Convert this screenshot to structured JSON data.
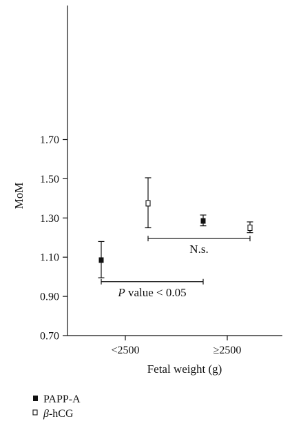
{
  "chart_data": {
    "type": "errorbar",
    "title": "",
    "xlabel": "Fetal weight (g)",
    "ylabel": "MoM",
    "categories": [
      "<2500",
      "≥2500"
    ],
    "ylim": [
      0.7,
      1.8
    ],
    "yticks": [
      "0.70",
      "0.90",
      "1.10",
      "1.30",
      "1.50",
      "1.70"
    ],
    "grid": false,
    "series": [
      {
        "name": "PAPP-A",
        "marker": "filled-square",
        "color": "#111111",
        "points": [
          {
            "category": "<2500",
            "mean": 1.085,
            "lower": 0.995,
            "upper": 1.18
          },
          {
            "category": "≥2500",
            "mean": 1.285,
            "lower": 1.26,
            "upper": 1.315
          }
        ]
      },
      {
        "name": "β-hCG",
        "marker": "open-square",
        "color": "#111111",
        "points": [
          {
            "category": "<2500",
            "mean": 1.375,
            "lower": 1.25,
            "upper": 1.505
          },
          {
            "category": "≥2500",
            "mean": 1.25,
            "lower": 1.225,
            "upper": 1.28
          }
        ]
      }
    ],
    "annotations": [
      {
        "text_prefix": "P",
        "text_rest": " value < 0.05",
        "y": 0.975,
        "from": "PAPP-A <2500",
        "to": "PAPP-A ≥2500",
        "label_position": "below"
      },
      {
        "text_prefix": "",
        "text_rest": "N.s.",
        "y": 1.195,
        "from": "β-hCG <2500",
        "to": "β-hCG ≥2500",
        "label_position": "below"
      }
    ],
    "legend": {
      "position": "bottom-left",
      "entries": [
        {
          "label_prefix": "",
          "label_rest": "PAPP-A",
          "marker": "filled-square"
        },
        {
          "label_prefix": "β",
          "label_rest": "-hCG",
          "marker": "open-square"
        }
      ]
    }
  }
}
